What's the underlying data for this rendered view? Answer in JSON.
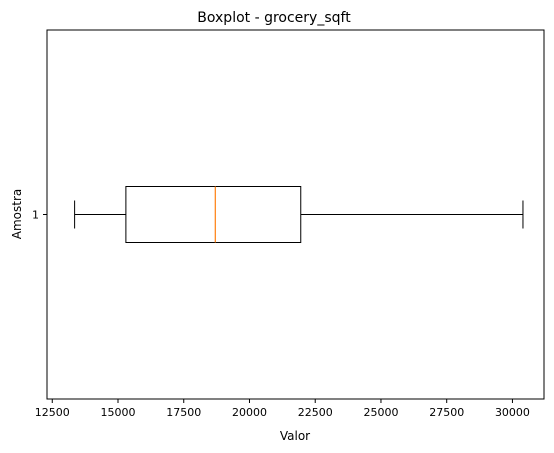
{
  "chart_data": {
    "type": "boxplot",
    "orientation": "horizontal",
    "title": "Boxplot - grocery_sqft",
    "xlabel": "Valor",
    "ylabel": "Amostra",
    "xlim": [
      12300,
      31200
    ],
    "ylim": [
      0.5,
      1.5
    ],
    "xticks": [
      12500,
      15000,
      17500,
      20000,
      22500,
      25000,
      27500,
      30000
    ],
    "xtick_labels": [
      "12500",
      "15000",
      "17500",
      "20000",
      "22500",
      "25000",
      "27500",
      "30000"
    ],
    "category_labels": [
      "1"
    ],
    "boxes": [
      {
        "position": 1,
        "whisker_low": 13350,
        "q1": 15300,
        "median": 18700,
        "q3": 21950,
        "whisker_high": 30400
      }
    ],
    "grid": false,
    "box_color": "#000000",
    "median_color": "#ff7f0e"
  }
}
